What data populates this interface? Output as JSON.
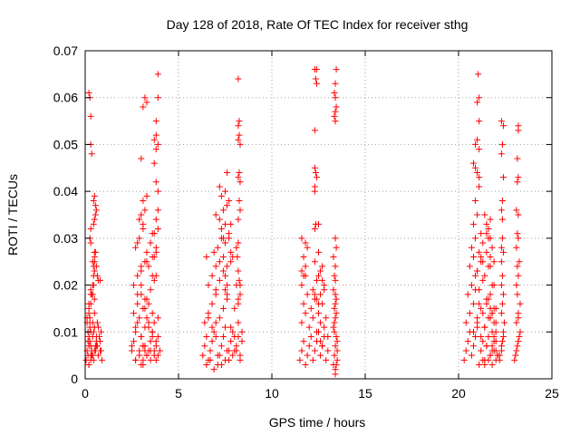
{
  "chart_data": {
    "type": "scatter",
    "title": "Day 128 of 2018, Rate Of TEC Index for receiver sthg",
    "xlabel": "GPS time / hours",
    "ylabel": "ROTI / TECUs",
    "xlim": [
      0,
      25
    ],
    "ylim": [
      0,
      0.07
    ],
    "xticks": [
      0,
      5,
      10,
      15,
      20,
      25
    ],
    "xtick_labels": [
      "0",
      "5",
      "10",
      "15",
      "20",
      "25"
    ],
    "yticks": [
      0,
      0.01,
      0.02,
      0.03,
      0.04,
      0.05,
      0.06,
      0.07
    ],
    "ytick_labels": [
      "0",
      "0.01",
      "0.02",
      "0.03",
      "0.04",
      "0.05",
      "0.06",
      "0.07"
    ],
    "grid": true,
    "marker": "plus",
    "color": "#ff0000",
    "series": [
      {
        "name": "ROTI",
        "x": [
          0.05,
          0.1,
          0.15,
          0.2,
          0.25,
          0.3,
          0.35,
          0.4,
          0.45,
          0.5,
          0.55,
          0.6,
          0.65,
          0.7,
          0.8,
          0.9,
          0.1,
          0.2,
          0.3,
          0.4,
          0.5,
          0.6,
          0.7,
          0.8,
          0.15,
          0.25,
          0.35,
          0.45,
          0.55,
          0.65,
          0.75,
          0.85,
          0.2,
          0.3,
          0.4,
          0.5,
          0.6,
          0.2,
          0.3,
          0.5,
          0.3,
          0.4,
          0.45,
          0.5,
          0.5,
          0.55,
          0.6,
          0.65,
          0.7,
          0.8,
          0.85,
          0.45,
          0.5,
          0.55,
          0.45,
          0.5,
          0.55,
          0.6,
          0.4,
          0.45,
          0.5,
          0.2,
          0.25,
          0.3,
          0.3,
          0.35,
          0.25,
          0.3,
          0.2,
          0.25,
          0.3,
          0.35,
          0.4,
          0.45,
          0.5,
          0.3,
          0.1,
          0.2,
          0.3,
          0.15,
          0.2,
          0.25,
          2.5,
          2.6,
          2.7,
          2.8,
          2.9,
          3.0,
          3.1,
          3.2,
          3.3,
          3.4,
          3.5,
          3.6,
          3.7,
          3.8,
          3.9,
          4.0,
          2.6,
          2.8,
          3.0,
          3.2,
          3.4,
          3.6,
          3.8,
          2.7,
          2.9,
          3.1,
          3.3,
          3.5,
          3.7,
          3.9,
          2.5,
          2.7,
          2.9,
          3.1,
          3.3,
          3.5,
          3.7,
          2.6,
          2.8,
          3.0,
          3.2,
          3.4,
          3.6,
          3.8,
          2.7,
          2.9,
          3.1,
          3.3,
          3.5,
          3.7,
          2.8,
          3.0,
          3.2,
          3.4,
          3.6,
          3.9,
          3.0,
          3.2,
          3.4,
          3.6,
          2.7,
          3.0,
          3.3,
          3.5,
          3.8,
          3.0,
          3.1,
          3.2,
          3.3,
          3.1,
          3.2,
          3.3,
          3.0,
          2.9,
          3.1,
          2.8,
          3.0,
          3.3,
          3.8,
          3.9,
          3.6,
          3.9,
          3.6,
          3.7,
          3.8,
          3.7,
          3.8,
          3.9,
          3.8,
          3.8,
          3.9,
          3.9,
          3.7,
          3.8,
          3.9,
          3.8,
          3.7,
          3.1,
          3.2,
          3.3,
          3.1,
          6.3,
          6.4,
          6.5,
          6.6,
          6.7,
          6.8,
          6.9,
          7.0,
          7.1,
          7.2,
          7.3,
          7.4,
          7.5,
          7.6,
          7.7,
          7.8,
          7.9,
          8.0,
          8.1,
          8.2,
          8.3,
          8.4,
          6.4,
          6.6,
          6.8,
          7.0,
          7.2,
          7.4,
          7.6,
          7.8,
          8.0,
          8.2,
          8.4,
          6.5,
          6.7,
          6.9,
          7.1,
          7.3,
          7.5,
          7.7,
          7.9,
          8.1,
          8.3,
          6.6,
          6.8,
          7.0,
          7.2,
          7.4,
          7.6,
          7.8,
          8.0,
          8.2,
          6.9,
          7.1,
          7.3,
          7.5,
          7.7,
          7.9,
          8.1,
          8.3,
          7.0,
          7.2,
          7.4,
          7.6,
          7.8,
          8.2,
          7.3,
          7.5,
          7.7,
          7.2,
          7.4,
          7.6,
          7.3,
          7.5,
          7.2,
          7.4,
          7.5,
          7.8,
          7.6,
          7.5,
          7.6,
          7.0,
          7.7,
          8.2,
          8.25,
          8.3,
          8.2,
          8.25,
          8.3,
          8.2,
          8.25,
          8.2,
          8.25,
          8.3,
          8.2,
          8.1,
          8.15,
          8.2,
          8.25,
          8.3,
          8.2,
          6.5,
          6.6,
          6.8,
          7.0,
          11.5,
          11.6,
          11.7,
          11.8,
          11.9,
          12.0,
          12.1,
          12.2,
          12.3,
          12.4,
          12.5,
          12.6,
          12.7,
          12.8,
          12.9,
          13.0,
          11.6,
          11.8,
          12.0,
          12.2,
          12.4,
          12.6,
          12.8,
          13.0,
          11.7,
          11.9,
          12.1,
          12.3,
          12.5,
          12.7,
          12.9,
          11.6,
          11.8,
          12.2,
          12.4,
          12.6,
          12.8,
          11.7,
          11.9,
          12.3,
          12.5,
          12.7,
          11.6,
          11.8,
          12.3,
          12.5,
          11.6,
          11.7,
          11.8,
          12.3,
          12.4,
          12.5,
          12.3,
          12.4,
          12.3,
          12.35,
          12.3,
          12.4,
          12.3,
          12.35,
          12.4,
          12.3,
          12.35,
          12.5,
          12.6,
          12.7,
          12.8,
          12.6,
          12.7,
          13.3,
          13.35,
          13.4,
          13.45,
          13.5,
          13.3,
          13.4,
          13.5,
          13.35,
          13.45,
          13.3,
          13.4,
          13.5,
          13.35,
          13.45,
          13.4,
          13.35,
          13.4,
          13.3,
          13.45,
          13.4,
          13.35,
          13.4,
          13.4,
          13.45,
          13.4,
          13.35,
          13.4,
          13.45,
          13.4,
          13.35,
          13.4,
          13.45,
          13.4,
          20.3,
          20.4,
          20.5,
          20.6,
          20.7,
          20.8,
          20.9,
          21.0,
          21.1,
          21.2,
          21.3,
          21.4,
          21.5,
          21.6,
          21.7,
          21.8,
          21.9,
          22.0,
          22.1,
          20.4,
          20.6,
          20.8,
          21.0,
          21.2,
          21.4,
          21.6,
          21.8,
          22.0,
          20.5,
          20.7,
          20.9,
          21.1,
          21.3,
          21.5,
          21.7,
          21.9,
          20.6,
          20.8,
          21.0,
          21.2,
          21.4,
          21.6,
          21.8,
          20.7,
          20.9,
          21.1,
          21.3,
          21.5,
          21.7,
          21.9,
          20.8,
          21.0,
          21.2,
          21.4,
          21.6,
          21.8,
          20.9,
          21.1,
          21.3,
          21.5,
          21.7,
          20.8,
          21.0,
          21.2,
          21.6,
          20.9,
          21.1,
          21.4,
          21.7,
          20.9,
          21.0,
          21.1,
          20.8,
          21.5,
          21.6,
          21.7,
          21.8,
          21.0,
          21.1,
          21.05,
          21.1,
          20.9,
          21.0,
          21.1,
          21.0,
          21.2,
          21.3,
          21.5,
          21.7,
          21.9,
          22.0,
          21.8,
          21.9,
          22.0,
          22.1,
          21.9,
          22.0,
          21.9,
          22.0,
          21.6,
          21.7,
          21.8,
          21.5,
          21.4,
          21.3,
          21.7,
          21.8,
          22.2,
          22.3,
          22.35,
          22.4,
          22.45,
          22.2,
          22.3,
          22.4,
          22.3,
          22.35,
          22.4,
          22.3,
          22.35,
          22.3,
          22.4,
          22.35,
          22.3,
          22.35,
          22.4,
          22.3,
          22.35,
          22.3,
          22.4,
          22.35,
          22.3,
          23.0,
          23.1,
          23.2,
          23.3,
          23.05,
          23.15,
          23.25,
          23.1,
          23.2,
          23.3,
          23.1,
          23.2,
          23.15,
          23.25,
          23.1,
          23.2,
          23.15,
          23.2,
          23.1,
          23.15,
          23.2,
          23.15,
          23.2,
          23.2,
          23.15,
          23.2
        ],
        "y": [
          0.004,
          0.006,
          0.008,
          0.003,
          0.012,
          0.007,
          0.005,
          0.009,
          0.004,
          0.011,
          0.006,
          0.008,
          0.007,
          0.005,
          0.006,
          0.004,
          0.013,
          0.015,
          0.01,
          0.012,
          0.014,
          0.009,
          0.011,
          0.008,
          0.005,
          0.008,
          0.006,
          0.01,
          0.007,
          0.012,
          0.009,
          0.006,
          0.003,
          0.004,
          0.005,
          0.006,
          0.007,
          0.016,
          0.018,
          0.017,
          0.019,
          0.018,
          0.02,
          0.025,
          0.026,
          0.027,
          0.024,
          0.022,
          0.021,
          0.021,
          0.01,
          0.038,
          0.039,
          0.037,
          0.033,
          0.034,
          0.035,
          0.036,
          0.025,
          0.024,
          0.027,
          0.061,
          0.06,
          0.056,
          0.05,
          0.048,
          0.03,
          0.032,
          0.009,
          0.013,
          0.016,
          0.018,
          0.02,
          0.022,
          0.023,
          0.029,
          0.012,
          0.007,
          0.005,
          0.01,
          0.014,
          0.011,
          0.006,
          0.008,
          0.01,
          0.012,
          0.005,
          0.009,
          0.007,
          0.011,
          0.013,
          0.006,
          0.008,
          0.01,
          0.005,
          0.007,
          0.009,
          0.006,
          0.014,
          0.016,
          0.018,
          0.015,
          0.012,
          0.01,
          0.008,
          0.004,
          0.006,
          0.003,
          0.005,
          0.004,
          0.006,
          0.005,
          0.007,
          0.011,
          0.013,
          0.015,
          0.017,
          0.019,
          0.021,
          0.02,
          0.022,
          0.023,
          0.025,
          0.024,
          0.026,
          0.022,
          0.028,
          0.03,
          0.032,
          0.027,
          0.029,
          0.031,
          0.018,
          0.02,
          0.017,
          0.016,
          0.014,
          0.013,
          0.009,
          0.007,
          0.011,
          0.009,
          0.004,
          0.003,
          0.005,
          0.006,
          0.004,
          0.035,
          0.038,
          0.036,
          0.039,
          0.058,
          0.06,
          0.059,
          0.047,
          0.034,
          0.033,
          0.029,
          0.024,
          0.025,
          0.034,
          0.036,
          0.031,
          0.032,
          0.022,
          0.026,
          0.027,
          0.051,
          0.052,
          0.05,
          0.049,
          0.055,
          0.06,
          0.065,
          0.046,
          0.042,
          0.04,
          0.028,
          0.012,
          0.007,
          0.006,
          0.005,
          0.004,
          0.005,
          0.007,
          0.009,
          0.004,
          0.006,
          0.008,
          0.01,
          0.012,
          0.003,
          0.005,
          0.007,
          0.009,
          0.011,
          0.006,
          0.004,
          0.008,
          0.01,
          0.006,
          0.007,
          0.009,
          0.005,
          0.008,
          0.012,
          0.014,
          0.016,
          0.018,
          0.013,
          0.015,
          0.017,
          0.011,
          0.009,
          0.012,
          0.01,
          0.003,
          0.004,
          0.002,
          0.005,
          0.003,
          0.004,
          0.006,
          0.005,
          0.006,
          0.004,
          0.02,
          0.022,
          0.019,
          0.021,
          0.023,
          0.024,
          0.025,
          0.015,
          0.016,
          0.027,
          0.028,
          0.03,
          0.029,
          0.031,
          0.026,
          0.02,
          0.018,
          0.035,
          0.034,
          0.036,
          0.037,
          0.033,
          0.023,
          0.039,
          0.04,
          0.038,
          0.041,
          0.03,
          0.044,
          0.032,
          0.033,
          0.025,
          0.026,
          0.022,
          0.027,
          0.02,
          0.019,
          0.018,
          0.024,
          0.03,
          0.043,
          0.044,
          0.042,
          0.051,
          0.052,
          0.05,
          0.054,
          0.055,
          0.064,
          0.038,
          0.036,
          0.034,
          0.028,
          0.026,
          0.029,
          0.021,
          0.02,
          0.017,
          0.026,
          0.013,
          0.011,
          0.009,
          0.004,
          0.006,
          0.008,
          0.003,
          0.005,
          0.007,
          0.009,
          0.004,
          0.006,
          0.008,
          0.01,
          0.005,
          0.007,
          0.009,
          0.004,
          0.006,
          0.012,
          0.014,
          0.011,
          0.013,
          0.01,
          0.012,
          0.011,
          0.009,
          0.016,
          0.018,
          0.015,
          0.017,
          0.014,
          0.016,
          0.013,
          0.02,
          0.022,
          0.019,
          0.021,
          0.018,
          0.02,
          0.026,
          0.028,
          0.025,
          0.027,
          0.024,
          0.03,
          0.029,
          0.032,
          0.033,
          0.023,
          0.022,
          0.024,
          0.018,
          0.017,
          0.016,
          0.04,
          0.043,
          0.045,
          0.044,
          0.053,
          0.066,
          0.066,
          0.064,
          0.063,
          0.041,
          0.033,
          0.022,
          0.023,
          0.021,
          0.019,
          0.008,
          0.007,
          0.003,
          0.005,
          0.007,
          0.009,
          0.004,
          0.011,
          0.013,
          0.006,
          0.015,
          0.017,
          0.019,
          0.021,
          0.008,
          0.012,
          0.014,
          0.016,
          0.022,
          0.024,
          0.026,
          0.028,
          0.03,
          0.01,
          0.001,
          0.002,
          0.003,
          0.055,
          0.056,
          0.057,
          0.058,
          0.06,
          0.061,
          0.063,
          0.066,
          0.018,
          0.004,
          0.006,
          0.008,
          0.01,
          0.005,
          0.007,
          0.009,
          0.011,
          0.003,
          0.006,
          0.008,
          0.004,
          0.007,
          0.009,
          0.005,
          0.003,
          0.006,
          0.004,
          0.005,
          0.012,
          0.014,
          0.016,
          0.013,
          0.015,
          0.011,
          0.017,
          0.014,
          0.012,
          0.018,
          0.02,
          0.022,
          0.019,
          0.021,
          0.016,
          0.018,
          0.015,
          0.024,
          0.026,
          0.023,
          0.025,
          0.022,
          0.024,
          0.02,
          0.028,
          0.03,
          0.027,
          0.029,
          0.031,
          0.026,
          0.025,
          0.01,
          0.012,
          0.009,
          0.011,
          0.013,
          0.01,
          0.019,
          0.016,
          0.014,
          0.017,
          0.015,
          0.033,
          0.035,
          0.031,
          0.03,
          0.038,
          0.041,
          0.035,
          0.034,
          0.05,
          0.051,
          0.049,
          0.046,
          0.033,
          0.032,
          0.03,
          0.028,
          0.059,
          0.06,
          0.065,
          0.055,
          0.045,
          0.044,
          0.043,
          0.023,
          0.026,
          0.025,
          0.027,
          0.024,
          0.02,
          0.015,
          0.007,
          0.008,
          0.006,
          0.005,
          0.012,
          0.01,
          0.009,
          0.008,
          0.004,
          0.005,
          0.006,
          0.007,
          0.003,
          0.004,
          0.013,
          0.014,
          0.004,
          0.006,
          0.008,
          0.01,
          0.012,
          0.005,
          0.007,
          0.009,
          0.014,
          0.016,
          0.018,
          0.02,
          0.022,
          0.025,
          0.027,
          0.03,
          0.036,
          0.038,
          0.043,
          0.048,
          0.05,
          0.055,
          0.054,
          0.034,
          0.028,
          0.004,
          0.006,
          0.008,
          0.01,
          0.005,
          0.007,
          0.009,
          0.012,
          0.014,
          0.016,
          0.02,
          0.022,
          0.018,
          0.025,
          0.028,
          0.03,
          0.031,
          0.035,
          0.036,
          0.042,
          0.043,
          0.047,
          0.053,
          0.054,
          0.024,
          0.013
        ]
      }
    ]
  }
}
